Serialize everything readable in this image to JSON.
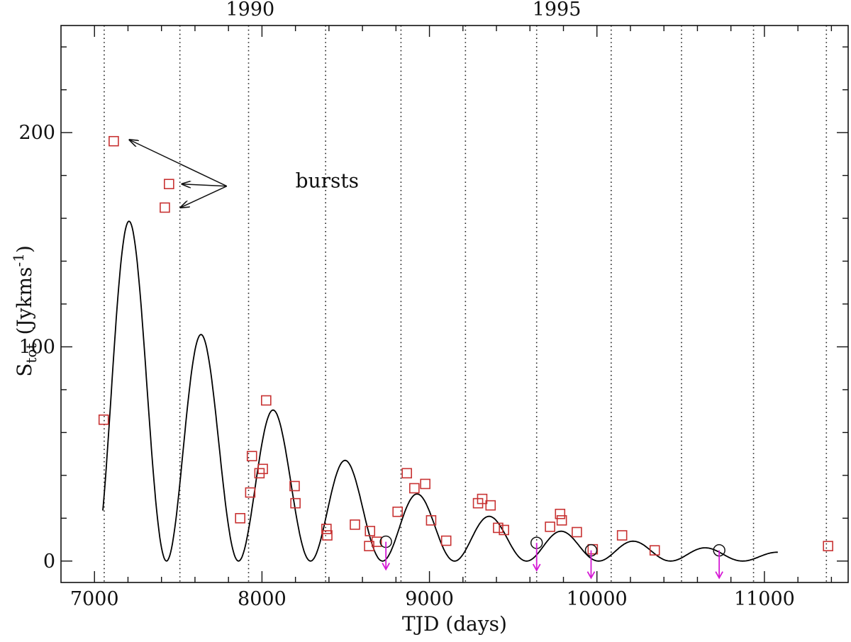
{
  "chart_data": {
    "type": "scatter",
    "xlabel": "TJD (days)",
    "ylabel": {
      "base": "S",
      "sub": "tot",
      "unit_pre": "(Jykms",
      "unit_sup": "-1",
      "unit_post": ")"
    },
    "xlim": [
      6800,
      11500
    ],
    "ylim": [
      -10,
      250
    ],
    "x_ticks": [
      7000,
      8000,
      9000,
      10000,
      11000
    ],
    "x_tick_labels": [
      "7000",
      "8000",
      "9000",
      "10000",
      "11000"
    ],
    "y_ticks": [
      0,
      100,
      200
    ],
    "y_tick_labels": [
      "0",
      "100",
      "200"
    ],
    "x_minor_step": 200,
    "y_minor_step": 20,
    "top_axis_labels": [
      {
        "x": 7930,
        "label": "1990"
      },
      {
        "x": 9760,
        "label": "1995"
      }
    ],
    "vertical_lines": [
      7058,
      7510,
      7920,
      8380,
      8830,
      9215,
      9640,
      10085,
      10505,
      10935,
      11370
    ],
    "observations": [
      {
        "x": 7055,
        "y": 66
      },
      {
        "x": 7115,
        "y": 196
      },
      {
        "x": 7420,
        "y": 165
      },
      {
        "x": 7445,
        "y": 176
      },
      {
        "x": 7870,
        "y": 20
      },
      {
        "x": 7930,
        "y": 32
      },
      {
        "x": 7940,
        "y": 49
      },
      {
        "x": 7985,
        "y": 41
      },
      {
        "x": 8005,
        "y": 43
      },
      {
        "x": 8025,
        "y": 75
      },
      {
        "x": 8195,
        "y": 35
      },
      {
        "x": 8200,
        "y": 27
      },
      {
        "x": 8385,
        "y": 15
      },
      {
        "x": 8390,
        "y": 12
      },
      {
        "x": 8555,
        "y": 17
      },
      {
        "x": 8640,
        "y": 7
      },
      {
        "x": 8645,
        "y": 14
      },
      {
        "x": 8685,
        "y": 9
      },
      {
        "x": 8810,
        "y": 23
      },
      {
        "x": 8865,
        "y": 41
      },
      {
        "x": 8910,
        "y": 34
      },
      {
        "x": 8975,
        "y": 36
      },
      {
        "x": 9010,
        "y": 19
      },
      {
        "x": 9100,
        "y": 9.5
      },
      {
        "x": 9290,
        "y": 27
      },
      {
        "x": 9315,
        "y": 29
      },
      {
        "x": 9365,
        "y": 26
      },
      {
        "x": 9410,
        "y": 15.5
      },
      {
        "x": 9445,
        "y": 14.5
      },
      {
        "x": 9720,
        "y": 16
      },
      {
        "x": 9780,
        "y": 22
      },
      {
        "x": 9790,
        "y": 19
      },
      {
        "x": 9880,
        "y": 13.5
      },
      {
        "x": 9975,
        "y": 5.5
      },
      {
        "x": 10150,
        "y": 12
      },
      {
        "x": 10345,
        "y": 5
      },
      {
        "x": 11380,
        "y": 7
      }
    ],
    "upper_limits": [
      {
        "x": 8740,
        "y": 9
      },
      {
        "x": 9640,
        "y": 8.5
      },
      {
        "x": 9965,
        "y": 5
      },
      {
        "x": 10730,
        "y": 5
      }
    ],
    "model_curve": {
      "x_start": 7050,
      "x_end": 11080,
      "amplitude": 158,
      "peak_first": 7215,
      "period": 430,
      "decay_days": 1060
    },
    "annotation": {
      "text": "bursts",
      "x": 8200,
      "y": 177,
      "arrow_origin": {
        "x": 7790,
        "y": 175
      }
    },
    "colors": {
      "observation": "#c83232",
      "curve": "#000000",
      "upper_limit_arrow": "#d51ad5",
      "text": "#111111"
    }
  }
}
